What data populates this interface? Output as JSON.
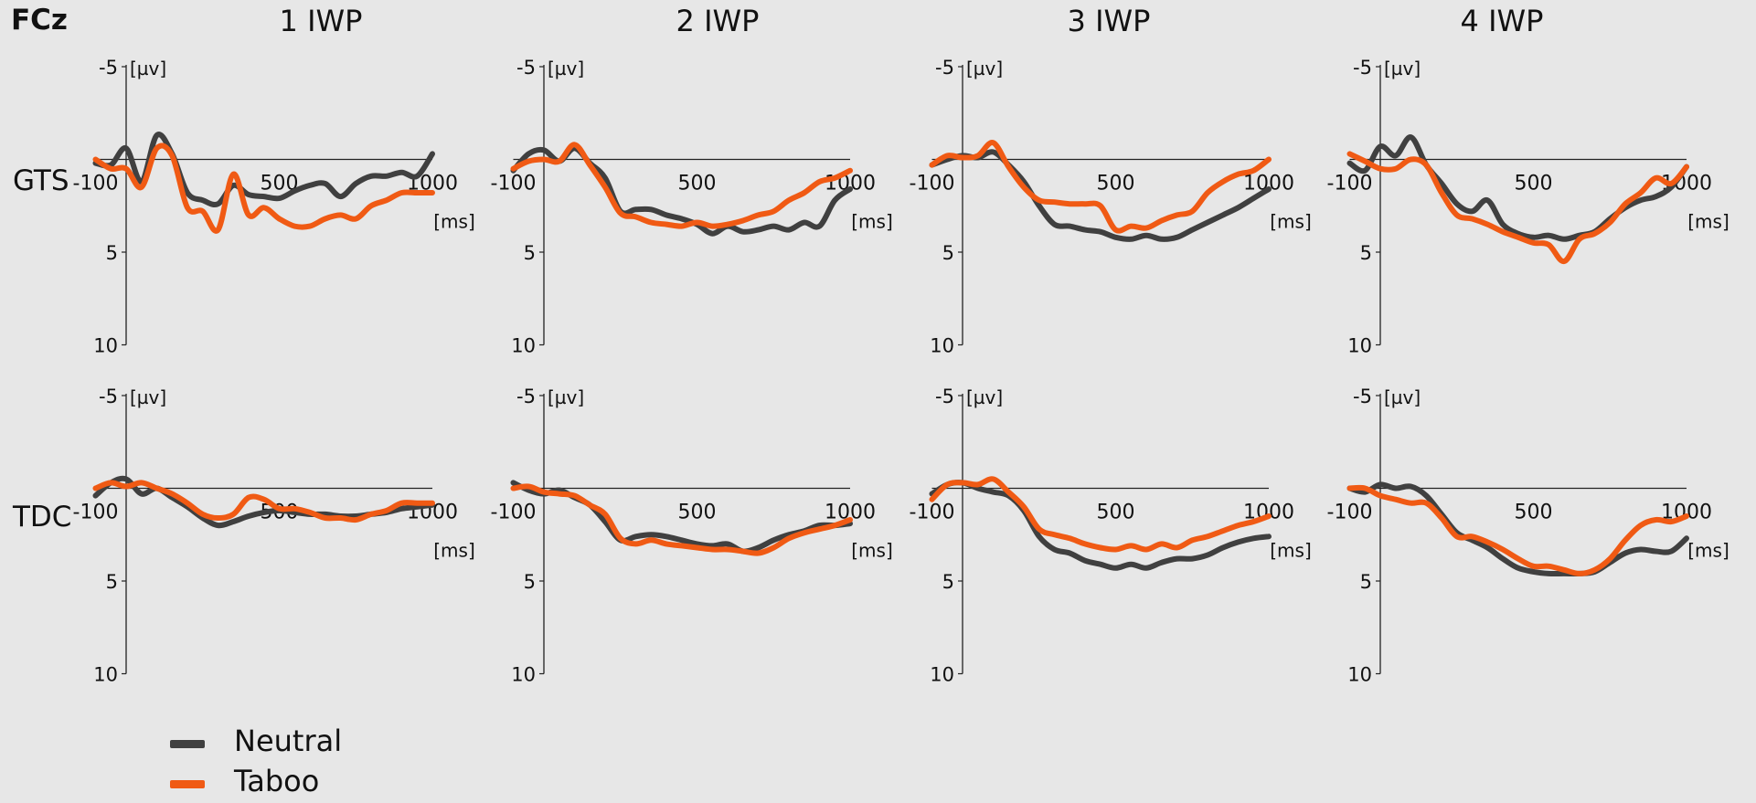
{
  "figure": {
    "electrode": "FCz",
    "columns": [
      "1 IWP",
      "2 IWP",
      "3 IWP",
      "4 IWP"
    ],
    "rows": [
      "GTS",
      "TDC"
    ],
    "legend": [
      {
        "label": "Neutral",
        "color": "#404040"
      },
      {
        "label": "Taboo",
        "color": "#f05a14"
      }
    ]
  },
  "chart_data": {
    "type": "line",
    "xlabel": "[ms]",
    "ylabel": "[µv]",
    "xticks": [
      "-100",
      "500",
      "1000"
    ],
    "yticks": [
      "-5",
      "5",
      "10"
    ],
    "xlim": [
      -100,
      1000
    ],
    "ylim": [
      -5,
      10
    ],
    "y_inverted": true,
    "panels": [
      {
        "row": "GTS",
        "col": "1 IWP",
        "x": [
          -100,
          -50,
          0,
          50,
          100,
          150,
          200,
          250,
          300,
          350,
          400,
          450,
          500,
          550,
          600,
          650,
          700,
          750,
          800,
          850,
          900,
          950,
          1000
        ],
        "series": [
          {
            "name": "Neutral",
            "values": [
              0.2,
              0.3,
              -0.6,
              1.2,
              -1.3,
              -0.3,
              1.8,
              2.2,
              2.4,
              1.4,
              1.9,
              2.0,
              2.1,
              1.7,
              1.4,
              1.3,
              2.0,
              1.3,
              0.9,
              0.9,
              0.7,
              0.9,
              -0.3
            ]
          },
          {
            "name": "Taboo",
            "values": [
              0.0,
              0.5,
              0.5,
              1.5,
              -0.6,
              -0.2,
              2.6,
              2.8,
              3.8,
              0.8,
              3.0,
              2.6,
              3.2,
              3.6,
              3.6,
              3.2,
              3.0,
              3.2,
              2.5,
              2.2,
              1.8,
              1.8,
              1.8
            ]
          }
        ]
      },
      {
        "row": "GTS",
        "col": "2 IWP",
        "x": [
          -100,
          -50,
          0,
          50,
          100,
          150,
          200,
          250,
          300,
          350,
          400,
          450,
          500,
          550,
          600,
          650,
          700,
          750,
          800,
          850,
          900,
          950,
          1000
        ],
        "series": [
          {
            "name": "Neutral",
            "values": [
              0.6,
              -0.3,
              -0.5,
              0.1,
              -0.6,
              0.2,
              1.0,
              2.8,
              2.7,
              2.7,
              3.0,
              3.2,
              3.5,
              4.0,
              3.6,
              3.9,
              3.8,
              3.6,
              3.8,
              3.4,
              3.6,
              2.2,
              1.6
            ]
          },
          {
            "name": "Taboo",
            "values": [
              0.5,
              0.1,
              0.0,
              0.1,
              -0.8,
              0.3,
              1.5,
              2.9,
              3.1,
              3.4,
              3.5,
              3.6,
              3.4,
              3.6,
              3.5,
              3.3,
              3.0,
              2.8,
              2.2,
              1.8,
              1.2,
              1.0,
              0.6
            ]
          }
        ]
      },
      {
        "row": "GTS",
        "col": "3 IWP",
        "x": [
          -100,
          -50,
          0,
          50,
          100,
          150,
          200,
          250,
          300,
          350,
          400,
          450,
          500,
          550,
          600,
          650,
          700,
          750,
          800,
          850,
          900,
          950,
          1000
        ],
        "series": [
          {
            "name": "Neutral",
            "values": [
              0.3,
              0.0,
              -0.2,
              -0.1,
              -0.4,
              0.3,
              1.2,
              2.5,
              3.5,
              3.6,
              3.8,
              3.9,
              4.2,
              4.3,
              4.1,
              4.3,
              4.2,
              3.8,
              3.4,
              3.0,
              2.6,
              2.1,
              1.6
            ]
          },
          {
            "name": "Taboo",
            "values": [
              0.3,
              -0.2,
              -0.1,
              -0.2,
              -0.9,
              0.4,
              1.5,
              2.2,
              2.3,
              2.4,
              2.4,
              2.5,
              3.8,
              3.6,
              3.7,
              3.3,
              3.0,
              2.8,
              1.8,
              1.2,
              0.8,
              0.6,
              0.0
            ]
          }
        ]
      },
      {
        "row": "GTS",
        "col": "4 IWP",
        "x": [
          -100,
          -50,
          0,
          50,
          100,
          150,
          200,
          250,
          300,
          350,
          400,
          450,
          500,
          550,
          600,
          650,
          700,
          750,
          800,
          850,
          900,
          950,
          1000
        ],
        "series": [
          {
            "name": "Neutral",
            "values": [
              0.2,
              0.6,
              -0.7,
              -0.2,
              -1.2,
              0.3,
              1.3,
              2.4,
              2.8,
              2.2,
              3.5,
              4.0,
              4.2,
              4.1,
              4.3,
              4.1,
              3.9,
              3.2,
              2.6,
              2.2,
              2.0,
              1.5,
              0.4
            ]
          },
          {
            "name": "Taboo",
            "values": [
              -0.3,
              0.1,
              0.5,
              0.5,
              0.0,
              0.3,
              1.8,
              3.0,
              3.2,
              3.5,
              3.9,
              4.2,
              4.5,
              4.6,
              5.5,
              4.3,
              4.0,
              3.4,
              2.4,
              1.8,
              1.0,
              1.3,
              0.4
            ]
          }
        ]
      },
      {
        "row": "TDC",
        "col": "1 IWP",
        "x": [
          -100,
          -50,
          0,
          50,
          100,
          150,
          200,
          250,
          300,
          350,
          400,
          450,
          500,
          550,
          600,
          650,
          700,
          750,
          800,
          850,
          900,
          950,
          1000
        ],
        "series": [
          {
            "name": "Neutral",
            "values": [
              0.4,
              -0.3,
              -0.5,
              0.3,
              0.0,
              0.5,
              1.0,
              1.6,
              2.0,
              1.8,
              1.5,
              1.3,
              1.2,
              1.3,
              1.4,
              1.4,
              1.5,
              1.5,
              1.4,
              1.3,
              1.1,
              1.0,
              0.9
            ]
          },
          {
            "name": "Taboo",
            "values": [
              0.0,
              -0.3,
              -0.1,
              -0.3,
              0.0,
              0.3,
              0.8,
              1.4,
              1.6,
              1.4,
              0.5,
              0.6,
              1.1,
              1.1,
              1.3,
              1.6,
              1.6,
              1.7,
              1.4,
              1.2,
              0.8,
              0.8,
              0.8
            ]
          }
        ]
      },
      {
        "row": "TDC",
        "col": "2 IWP",
        "x": [
          -100,
          -50,
          0,
          50,
          100,
          150,
          200,
          250,
          300,
          350,
          400,
          450,
          500,
          550,
          600,
          650,
          700,
          750,
          800,
          850,
          900,
          950,
          1000
        ],
        "series": [
          {
            "name": "Neutral",
            "values": [
              -0.3,
              0.1,
              0.3,
              0.1,
              0.5,
              0.9,
              1.8,
              2.8,
              2.6,
              2.5,
              2.6,
              2.8,
              3.0,
              3.1,
              3.0,
              3.4,
              3.2,
              2.8,
              2.5,
              2.3,
              2.0,
              2.0,
              1.9
            ]
          },
          {
            "name": "Taboo",
            "values": [
              0.0,
              -0.1,
              0.2,
              0.3,
              0.4,
              0.9,
              1.4,
              2.7,
              3.0,
              2.8,
              3.0,
              3.1,
              3.2,
              3.3,
              3.3,
              3.4,
              3.5,
              3.2,
              2.7,
              2.4,
              2.2,
              2.0,
              1.7
            ]
          }
        ]
      },
      {
        "row": "TDC",
        "col": "3 IWP",
        "x": [
          -100,
          -50,
          0,
          50,
          100,
          150,
          200,
          250,
          300,
          350,
          400,
          450,
          500,
          550,
          600,
          650,
          700,
          750,
          800,
          850,
          900,
          950,
          1000
        ],
        "series": [
          {
            "name": "Neutral",
            "values": [
              0.3,
              -0.2,
              -0.3,
              0.0,
              0.2,
              0.4,
              1.2,
              2.6,
              3.3,
              3.5,
              3.9,
              4.1,
              4.3,
              4.1,
              4.3,
              4.0,
              3.8,
              3.8,
              3.6,
              3.2,
              2.9,
              2.7,
              2.6
            ]
          },
          {
            "name": "Taboo",
            "values": [
              0.6,
              -0.2,
              -0.3,
              -0.2,
              -0.5,
              0.2,
              1.0,
              2.2,
              2.5,
              2.7,
              3.0,
              3.2,
              3.3,
              3.1,
              3.3,
              3.0,
              3.2,
              2.8,
              2.6,
              2.3,
              2.0,
              1.8,
              1.5
            ]
          }
        ]
      },
      {
        "row": "TDC",
        "col": "4 IWP",
        "x": [
          -100,
          -50,
          0,
          50,
          100,
          150,
          200,
          250,
          300,
          350,
          400,
          450,
          500,
          550,
          600,
          650,
          700,
          750,
          800,
          850,
          900,
          950,
          1000
        ],
        "series": [
          {
            "name": "Neutral",
            "values": [
              0.0,
              0.2,
              -0.2,
              0.0,
              -0.1,
              0.4,
              1.4,
              2.4,
              2.8,
              3.2,
              3.8,
              4.3,
              4.5,
              4.6,
              4.6,
              4.6,
              4.5,
              4.0,
              3.5,
              3.3,
              3.4,
              3.4,
              2.7
            ]
          },
          {
            "name": "Taboo",
            "values": [
              0.0,
              0.0,
              0.4,
              0.6,
              0.8,
              0.8,
              1.6,
              2.6,
              2.6,
              2.9,
              3.3,
              3.8,
              4.2,
              4.2,
              4.4,
              4.6,
              4.4,
              3.8,
              2.8,
              2.0,
              1.7,
              1.8,
              1.5
            ]
          }
        ]
      }
    ]
  }
}
